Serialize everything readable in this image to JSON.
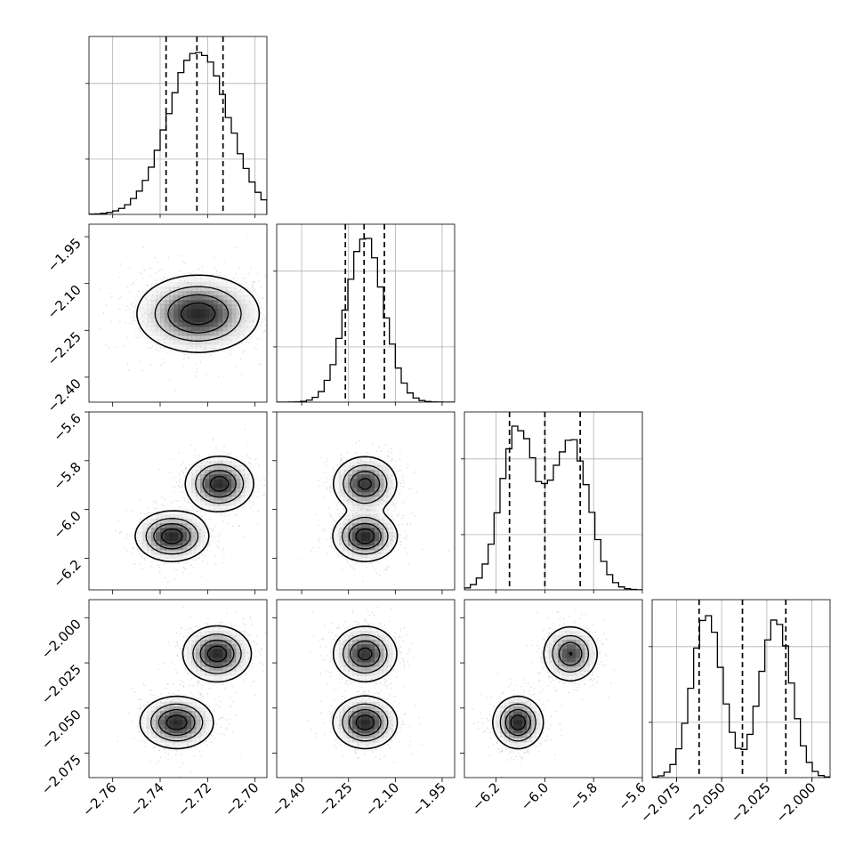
{
  "figure": {
    "background": "#ffffff",
    "foreground": "#000000",
    "grid_color": "#b0b0b0"
  },
  "chart_data": {
    "type": "corner",
    "description": "Corner plot of posterior samples for 4 parameters: 1-D marginal histograms on the diagonal with 16/50/84 percentile dashed lines; 2-D density contours with scatter points below the diagonal.",
    "grid": true,
    "parameters": [
      {
        "index": 0,
        "label": "",
        "range": [
          -2.77,
          -2.695
        ],
        "ticks": [
          -2.76,
          -2.74,
          -2.72,
          -2.7
        ],
        "tick_labels": [
          "−2.76",
          "−2.74",
          "−2.72",
          "−2.70"
        ],
        "quantiles": [
          -2.7375,
          -2.7245,
          -2.7135
        ],
        "hist_mixture": [
          {
            "mu": -2.724,
            "sd": 0.0125,
            "w": 1.0
          }
        ],
        "hist_bins": 30,
        "hist_peak": 0.91
      },
      {
        "index": 1,
        "label": "",
        "range": [
          -2.48,
          -1.91
        ],
        "ticks": [
          -2.4,
          -2.25,
          -2.1,
          -1.95
        ],
        "tick_labels": [
          "−2.40",
          "−2.25",
          "−2.10",
          "−1.95"
        ],
        "quantiles": [
          -2.26,
          -2.2,
          -2.135
        ],
        "hist_mixture": [
          {
            "mu": -2.197,
            "sd": 0.06,
            "w": 1.0
          }
        ],
        "hist_bins": 30,
        "hist_peak": 0.92
      },
      {
        "index": 2,
        "label": "",
        "range": [
          -6.33,
          -5.6
        ],
        "ticks": [
          -6.2,
          -6.0,
          -5.8,
          -5.6
        ],
        "tick_labels": [
          "−6.2",
          "−6.0",
          "−5.8",
          "−5.6"
        ],
        "quantiles": [
          -6.145,
          -6.0,
          -5.855
        ],
        "hist_mixture": [
          {
            "mu": -6.11,
            "sd": 0.07,
            "w": 0.5
          },
          {
            "mu": -5.895,
            "sd": 0.075,
            "w": 0.5
          }
        ],
        "hist_bins": 30,
        "hist_peak": 0.92
      },
      {
        "index": 3,
        "label": "",
        "range": [
          -2.0885,
          -1.99
        ],
        "ticks": [
          -2.075,
          -2.05,
          -2.025,
          -2.0
        ],
        "tick_labels": [
          "−2.075",
          "−2.050",
          "−2.025",
          "−2.000"
        ],
        "quantiles": [
          -2.0625,
          -2.0385,
          -2.0145
        ],
        "hist_mixture": [
          {
            "mu": -2.058,
            "sd": 0.0085,
            "w": 0.5
          },
          {
            "mu": -2.02,
            "sd": 0.0085,
            "w": 0.5
          }
        ],
        "hist_bins": 30,
        "hist_peak": 0.91
      }
    ],
    "pairs": [
      {
        "row": 1,
        "col": 0,
        "components": [
          {
            "mx": -2.724,
            "my": -2.197,
            "sx": 0.0125,
            "sy": 0.06,
            "rho": 0.0,
            "w": 1.0
          }
        ]
      },
      {
        "row": 2,
        "col": 0,
        "components": [
          {
            "mx": -2.715,
            "my": -5.895,
            "sx": 0.007,
            "sy": 0.055,
            "rho": 0.0,
            "w": 0.5
          },
          {
            "mx": -2.735,
            "my": -6.11,
            "sx": 0.0075,
            "sy": 0.05,
            "rho": 0.0,
            "w": 0.5
          }
        ]
      },
      {
        "row": 2,
        "col": 1,
        "components": [
          {
            "mx": -2.197,
            "my": -5.895,
            "sx": 0.05,
            "sy": 0.055,
            "rho": 0.0,
            "w": 0.5
          },
          {
            "mx": -2.197,
            "my": -6.11,
            "sx": 0.05,
            "sy": 0.05,
            "rho": 0.0,
            "w": 0.5
          }
        ]
      },
      {
        "row": 3,
        "col": 0,
        "components": [
          {
            "mx": -2.716,
            "my": -2.02,
            "sx": 0.007,
            "sy": 0.0075,
            "rho": 0.0,
            "w": 0.5
          },
          {
            "mx": -2.733,
            "my": -2.058,
            "sx": 0.0075,
            "sy": 0.007,
            "rho": 0.0,
            "w": 0.5
          }
        ]
      },
      {
        "row": 3,
        "col": 1,
        "components": [
          {
            "mx": -2.197,
            "my": -2.02,
            "sx": 0.05,
            "sy": 0.0075,
            "rho": 0.0,
            "w": 0.5
          },
          {
            "mx": -2.197,
            "my": -2.058,
            "sx": 0.05,
            "sy": 0.007,
            "rho": 0.0,
            "w": 0.5
          }
        ]
      },
      {
        "row": 3,
        "col": 2,
        "components": [
          {
            "mx": -5.895,
            "my": -2.02,
            "sx": 0.055,
            "sy": 0.0075,
            "rho": 0.0,
            "w": 0.5
          },
          {
            "mx": -6.11,
            "my": -2.058,
            "sx": 0.05,
            "sy": 0.007,
            "rho": 0.0,
            "w": 0.5
          }
        ]
      }
    ],
    "contour_levels": [
      0.12,
      0.35,
      0.6,
      0.85
    ],
    "scatter_points_per_panel": 900
  }
}
